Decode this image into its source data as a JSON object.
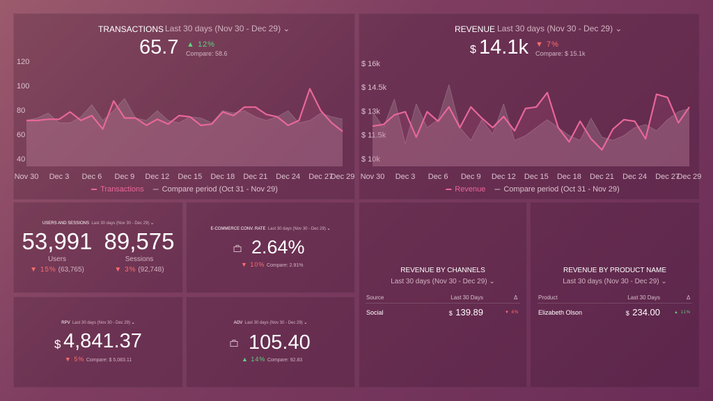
{
  "chart_data": [
    {
      "type": "line",
      "title": "TRANSACTIONS",
      "period": "Last 30 days (Nov 30 - Dec 29)",
      "kpi": {
        "value": "65.7",
        "change": "12%",
        "compare": "Compare: 58.6"
      },
      "categories": [
        "Nov 30",
        null,
        null,
        "Dec 3",
        null,
        null,
        "Dec 6",
        null,
        null,
        "Dec 9",
        null,
        null,
        "Dec 12",
        null,
        null,
        "Dec 15",
        null,
        null,
        "Dec 18",
        null,
        null,
        "Dec 21",
        null,
        null,
        "Dec 24",
        null,
        null,
        "Dec 27",
        null,
        "Dec 29"
      ],
      "series": [
        {
          "name": "Transactions",
          "color": "#e8679a",
          "values": [
            72,
            72,
            73,
            73,
            79,
            72,
            76,
            65,
            88,
            74,
            74,
            68,
            73,
            69,
            76,
            75,
            68,
            69,
            79,
            76,
            83,
            83,
            77,
            75,
            68,
            72,
            98,
            80,
            70,
            63
          ]
        },
        {
          "name": "Compare period (Oct 31 - Nov 29)",
          "color": "#a88495",
          "values": [
            72,
            74,
            78,
            70,
            70,
            75,
            85,
            72,
            80,
            90,
            74,
            72,
            80,
            72,
            70,
            75,
            74,
            70,
            80,
            78,
            80,
            75,
            72,
            75,
            80,
            70,
            72,
            78,
            75,
            73
          ]
        }
      ],
      "ylim": [
        40,
        120
      ],
      "yticks": [
        40,
        60,
        80,
        100,
        120
      ]
    },
    {
      "type": "line",
      "title": "REVENUE",
      "period": "Last 30 days (Nov 30 - Dec 29)",
      "kpi": {
        "currency": "$",
        "value": "14.1k",
        "change": "7%",
        "compare": "Compare: $ 15.1k"
      },
      "categories": [
        "Nov 30",
        null,
        null,
        "Dec 3",
        null,
        null,
        "Dec 6",
        null,
        null,
        "Dec 9",
        null,
        null,
        "Dec 12",
        null,
        null,
        "Dec 15",
        null,
        null,
        "Dec 18",
        null,
        null,
        "Dec 21",
        null,
        null,
        "Dec 24",
        null,
        null,
        "Dec 27",
        null,
        "Dec 29"
      ],
      "series": [
        {
          "name": "Revenue",
          "color": "#e8679a",
          "values": [
            12100,
            12200,
            12800,
            13000,
            11400,
            13000,
            12400,
            13300,
            12000,
            13300,
            12600,
            12000,
            12700,
            11800,
            13200,
            13300,
            14200,
            12000,
            11100,
            12400,
            11300,
            10600,
            11900,
            12500,
            12400,
            11300,
            14100,
            13900,
            12300,
            13300
          ]
        },
        {
          "name": "Compare period (Oct 31 - Nov 29)",
          "color": "#a88495",
          "values": [
            13000,
            12000,
            13800,
            11000,
            13500,
            12000,
            12500,
            14700,
            12000,
            11200,
            12500,
            11600,
            13500,
            11200,
            11500,
            12000,
            12500,
            12000,
            11500,
            11200,
            12600,
            11400,
            11200,
            11500,
            12000,
            12200,
            11800,
            12500,
            13000,
            13200
          ]
        }
      ],
      "ylim": [
        10000,
        16000
      ],
      "yticks": [
        {
          "value": 10000,
          "label": "$ 10k"
        },
        {
          "value": 11500,
          "label": "$ 11.5k"
        },
        {
          "value": 13000,
          "label": "$ 13k"
        },
        {
          "value": 14500,
          "label": "$ 14.5k"
        },
        {
          "value": 16000,
          "label": "$ 16k"
        }
      ]
    }
  ],
  "users_sessions": {
    "title": "USERS AND SESSIONS",
    "period": "Last 30 days (Nov 30 - Dec 29)",
    "users": {
      "value": "53,991",
      "label": "Users",
      "change": "15%",
      "compare": "(63,765)"
    },
    "sessions": {
      "value": "89,575",
      "label": "Sessions",
      "change": "3%",
      "compare": "(92,748)"
    }
  },
  "conv_rate": {
    "title": "E-COMMERCE CONV. RATE",
    "period": "Last 30 days (Nov 30 - Dec 29)",
    "value": "2.64%",
    "change": "10%",
    "compare": "Compare: 2.91%"
  },
  "rpv": {
    "title": "RPV",
    "period": "Last 30 days (Nov 30 - Dec 29)",
    "currency": "$",
    "value": "4,841.37",
    "change": "5%",
    "compare": "Compare: $ 5,083.11"
  },
  "aov": {
    "title": "AOV",
    "period": "Last 30 days (Nov 30 - Dec 29)",
    "value": "105.40",
    "change": "14%",
    "compare": "Compare: 92.83"
  },
  "revenue_by_channels": {
    "title": "REVENUE BY CHANNELS",
    "period": "Last 30 days (Nov 30 - Dec 29)",
    "columns": [
      "Source",
      "Last 30 Days",
      "Δ"
    ],
    "rows": [
      [
        "Social",
        "$",
        "139.89",
        "8%"
      ]
    ]
  },
  "revenue_by_product": {
    "title": "REVENUE BY PRODUCT NAME",
    "period": "Last 30 days (Nov 30 - Dec 29)",
    "columns": [
      "Product",
      "Last 30 Days",
      "Δ"
    ],
    "rows": [
      [
        "Elizabeth Olson",
        "$",
        "234.00",
        "11%"
      ]
    ]
  }
}
